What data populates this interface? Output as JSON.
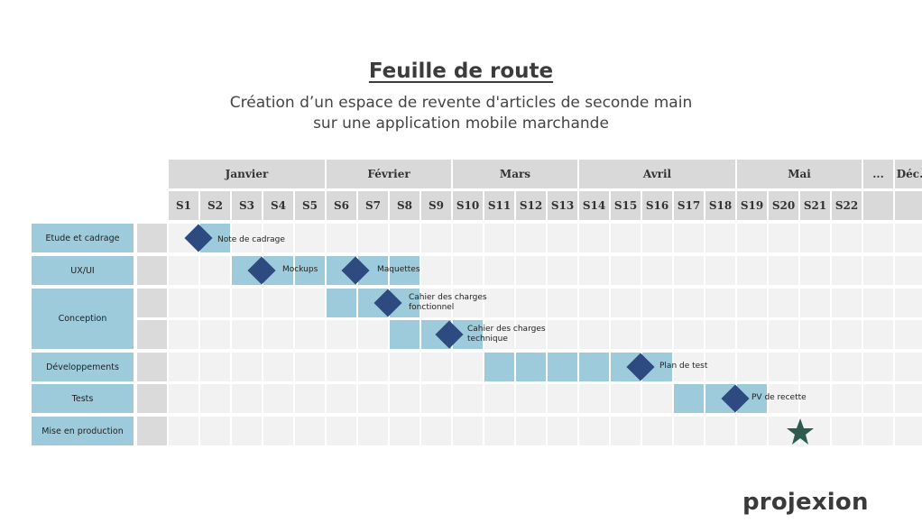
{
  "title": "Feuille de route",
  "subtitle_line1": "Création d’un espace de revente d'articles de seconde main",
  "subtitle_line2": "sur une application mobile marchande",
  "months": [
    "Janvier",
    "Février",
    "Mars",
    "Avril",
    "Mai",
    "...",
    "Déc."
  ],
  "weeks": [
    "S1",
    "S2",
    "S3",
    "S4",
    "S5",
    "S6",
    "S7",
    "S8",
    "S9",
    "S10",
    "S11",
    "S12",
    "S13",
    "S14",
    "S15",
    "S16",
    "S17",
    "S18",
    "S19",
    "S20",
    "S21",
    "S22"
  ],
  "categories": [
    "Etude et cadrage",
    "UX/UI",
    "Conception",
    "Développements",
    "Tests",
    "Mise en production"
  ],
  "tasks": [
    {
      "category": "Etude et cadrage",
      "start_week": 2,
      "end_week": 2
    },
    {
      "category": "UX/UI",
      "start_week": 3,
      "end_week": 8
    },
    {
      "category": "Conception",
      "start_week": 6,
      "end_week": 8
    },
    {
      "category": "Conception",
      "start_week": 8,
      "end_week": 10
    },
    {
      "category": "Développements",
      "start_week": 11,
      "end_week": 16
    },
    {
      "category": "Tests",
      "start_week": 17,
      "end_week": 19
    }
  ],
  "milestones": [
    {
      "label": "Note de cadrage",
      "week": "S2"
    },
    {
      "label": "Mockups",
      "week": "S4"
    },
    {
      "label": "Maquettes",
      "week": "S7"
    },
    {
      "label": "Cahier des charges\nfonctionnel",
      "week": "S8"
    },
    {
      "label": "Cahier des charges\ntechnique",
      "week": "S10"
    },
    {
      "label": "Plan de test",
      "week": "S16"
    },
    {
      "label": "PV de recette",
      "week": "S19"
    }
  ],
  "launch_marker": {
    "icon": "star-icon",
    "week": "S21",
    "color": "#2f5b4f"
  },
  "colors": {
    "bar": "#9dcbdc",
    "milestone": "#2d4b80",
    "header": "#d9d9d9",
    "cell": "#f2f2f2"
  },
  "logo_text": "projexion"
}
